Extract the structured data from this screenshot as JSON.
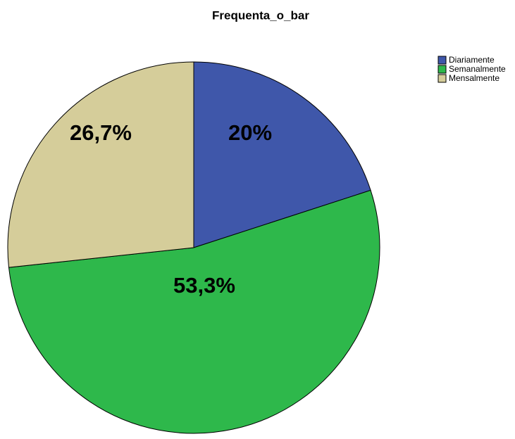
{
  "chart_data": {
    "type": "pie",
    "title": "Frequenta_o_bar",
    "categories": [
      "Diariamente",
      "Semanalmente",
      "Mensalmente"
    ],
    "values": [
      20,
      53.3,
      26.7
    ],
    "value_labels": [
      "20%",
      "53,3%",
      "26,7%"
    ],
    "colors": [
      "#3f57aa",
      "#2eb84b",
      "#d5cd9a"
    ],
    "legend": "top-right"
  }
}
